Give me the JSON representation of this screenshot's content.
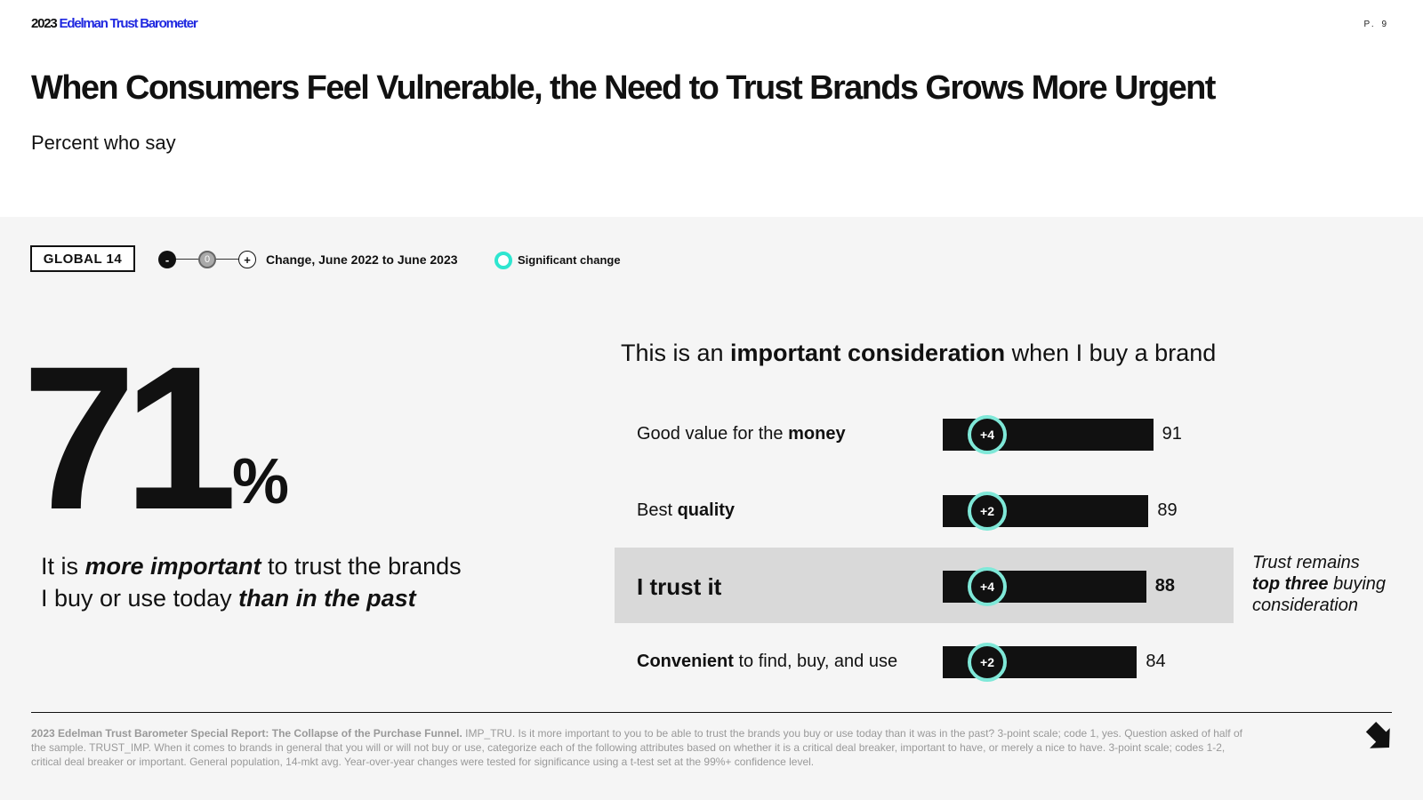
{
  "header": {
    "brand_year": "2023",
    "brand_name": "Edelman Trust Barometer",
    "page_number": "P. 9",
    "title": "When Consumers Feel Vulnerable, the Need to Trust Brands Grows More Urgent",
    "subtitle": "Percent who say"
  },
  "legend": {
    "badge": "GLOBAL 14",
    "minus_symbol": "-",
    "zero_symbol": "0",
    "plus_symbol": "+",
    "change_label": "Change, June 2022 to June 2023",
    "significant_label": "Significant change",
    "significant_color": "#2ee6d0"
  },
  "headline_stat": {
    "value": "71",
    "unit": "%",
    "statement_pre": "It is ",
    "statement_emph1": "more important",
    "statement_mid": " to trust the brands",
    "statement_line2_pre": "I buy or use today ",
    "statement_emph2": "than in the past"
  },
  "chart_data": {
    "type": "bar",
    "orientation": "horizontal",
    "title_pre": "This is an ",
    "title_bold": "important consideration",
    "title_post": " when I buy a brand",
    "categories": [
      "Good value for the money",
      "Best quality",
      "I trust it",
      "Convenient to find, buy, and use"
    ],
    "label_parts": [
      {
        "plain_before": "Good value for the ",
        "bold": "money",
        "plain_after": ""
      },
      {
        "plain_before": "Best ",
        "bold": "quality",
        "plain_after": ""
      },
      {
        "plain_before": "",
        "bold": "I trust it",
        "plain_after": ""
      },
      {
        "plain_before": "",
        "bold": "Convenient",
        "plain_after": " to find, buy, and use"
      }
    ],
    "values": [
      91,
      89,
      88,
      84
    ],
    "value_labels": [
      "91",
      "89",
      "88",
      "84"
    ],
    "changes": [
      "+4",
      "+2",
      "+4",
      "+2"
    ],
    "highlighted_category": "I trust it",
    "xlim": [
      0,
      100
    ],
    "bar_color": "#111111",
    "highlight_color": "#d9d9d9"
  },
  "callout": {
    "line1": "Trust remains",
    "line2_bold": "top three",
    "line2_rest": " buying",
    "line3": "consideration"
  },
  "footnote": {
    "source_bold": "2023 Edelman Trust Barometer Special Report: The Collapse of the Purchase Funnel.",
    "text": " IMP_TRU. Is it more important to you to be able to trust the brands you buy or use today than it was in the past? 3-point scale; code 1, yes. Question asked of half of the sample. TRUST_IMP. When it comes to brands in general that you will or will not buy or use, categorize each of the following attributes based on whether it is a critical deal breaker, important to have, or merely a nice to have. 3-point scale; codes 1-2, critical deal breaker or important. General population, 14-mkt avg. Year-over-year changes were tested for significance using a t-test set at the 99%+ confidence level."
  }
}
